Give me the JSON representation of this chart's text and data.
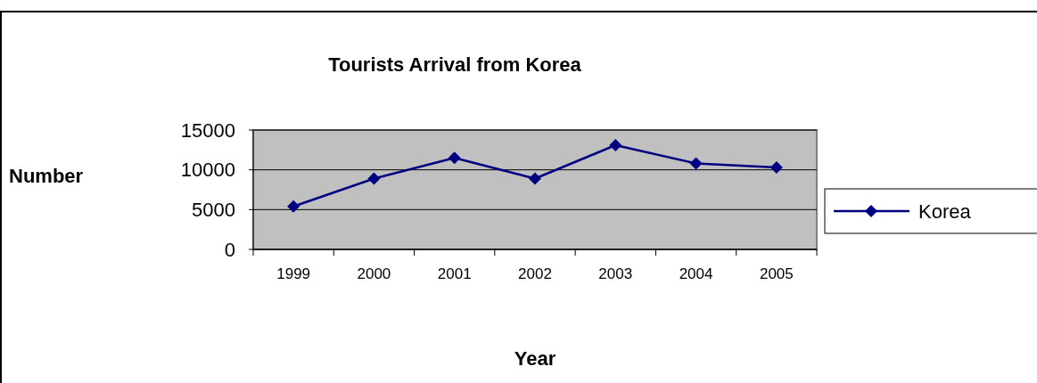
{
  "chart_data": {
    "type": "line",
    "title": "Tourists Arrival from Korea",
    "xlabel": "Year",
    "ylabel": "Number",
    "categories": [
      "1999",
      "2000",
      "2001",
      "2002",
      "2003",
      "2004",
      "2005"
    ],
    "series": [
      {
        "name": "Korea",
        "color": "#000080",
        "values": [
          5400,
          8900,
          11500,
          8900,
          13100,
          10800,
          10300
        ]
      }
    ],
    "ylim": [
      0,
      15000
    ],
    "yticks": [
      0,
      5000,
      10000,
      15000
    ],
    "grid": "y",
    "legend": "right",
    "marker": "diamond",
    "line_style": "solid"
  }
}
